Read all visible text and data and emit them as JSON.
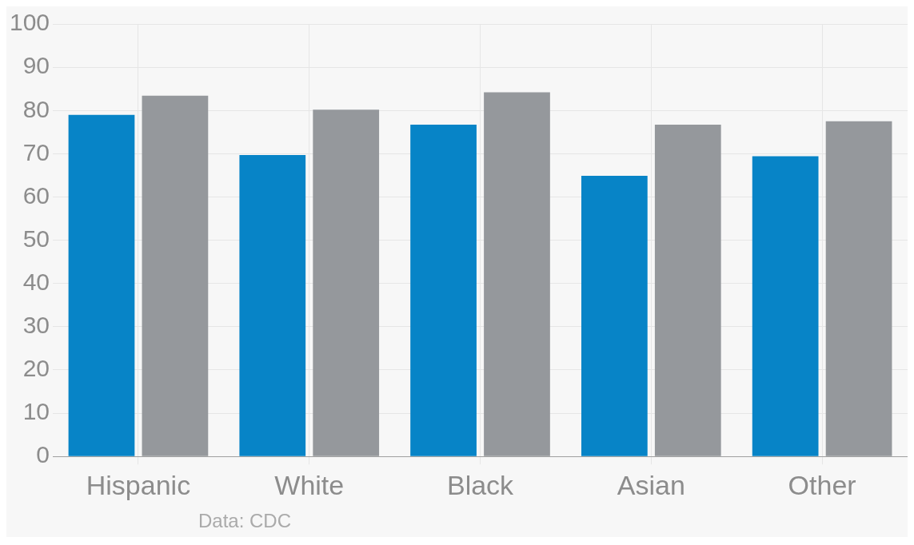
{
  "chart_data": {
    "type": "bar",
    "categories": [
      "Hispanic",
      "White",
      "Black",
      "Asian",
      "Other"
    ],
    "series": [
      {
        "color": "#0784c7",
        "values": [
          79,
          69.7,
          76.7,
          64.9,
          69.4
        ]
      },
      {
        "color": "#95989c",
        "values": [
          83.4,
          80.2,
          84.2,
          76.7,
          77.5
        ]
      }
    ],
    "ylim": [
      0,
      100
    ],
    "yticks": [
      0,
      10,
      20,
      30,
      40,
      50,
      60,
      70,
      80,
      90,
      100
    ],
    "grid": true,
    "annotations": [
      "Data: CDC"
    ]
  }
}
